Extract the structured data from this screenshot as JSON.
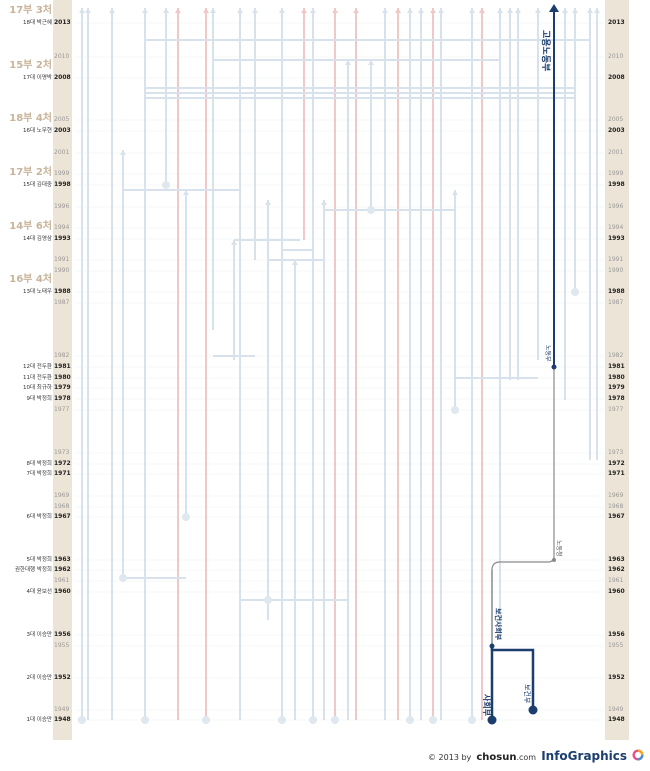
{
  "years_left": [
    {
      "y": "2013",
      "bold": true
    },
    {
      "y": "2010",
      "bold": false
    },
    {
      "y": "2008",
      "bold": true
    },
    {
      "y": "2005",
      "bold": false
    },
    {
      "y": "2003",
      "bold": true
    },
    {
      "y": "2001",
      "bold": false
    },
    {
      "y": "1999",
      "bold": false
    },
    {
      "y": "1998",
      "bold": true
    },
    {
      "y": "1996",
      "bold": false
    },
    {
      "y": "1994",
      "bold": false
    },
    {
      "y": "1993",
      "bold": true
    },
    {
      "y": "1991",
      "bold": false
    },
    {
      "y": "1990",
      "bold": false
    },
    {
      "y": "1988",
      "bold": true
    },
    {
      "y": "1987",
      "bold": false
    },
    {
      "y": "1982",
      "bold": false
    },
    {
      "y": "1981",
      "bold": true
    },
    {
      "y": "1980",
      "bold": true
    },
    {
      "y": "1979",
      "bold": true
    },
    {
      "y": "1978",
      "bold": true
    },
    {
      "y": "1977",
      "bold": false
    },
    {
      "y": "1973",
      "bold": false
    },
    {
      "y": "1972",
      "bold": true
    },
    {
      "y": "1971",
      "bold": true
    },
    {
      "y": "1969",
      "bold": false
    },
    {
      "y": "1968",
      "bold": false
    },
    {
      "y": "1967",
      "bold": true
    },
    {
      "y": "1963",
      "bold": true
    },
    {
      "y": "1962",
      "bold": true
    },
    {
      "y": "1961",
      "bold": false
    },
    {
      "y": "1960",
      "bold": true
    },
    {
      "y": "1956",
      "bold": true
    },
    {
      "y": "1955",
      "bold": false
    },
    {
      "y": "1952",
      "bold": true
    },
    {
      "y": "1949",
      "bold": false
    },
    {
      "y": "1948",
      "bold": true
    }
  ],
  "presidents": [
    {
      "year": "2013",
      "label": "18대 박근혜"
    },
    {
      "year": "2008",
      "label": "17대 이명박"
    },
    {
      "year": "2003",
      "label": "16대 노무현"
    },
    {
      "year": "1998",
      "label": "15대 김대중"
    },
    {
      "year": "1993",
      "label": "14대 김영삼"
    },
    {
      "year": "1988",
      "label": "13대 노태우"
    },
    {
      "year": "1981",
      "label": "12대 전두환"
    },
    {
      "year": "1980",
      "label": "11대 전두환"
    },
    {
      "year": "1979",
      "label": "10대 최규하"
    },
    {
      "year": "1978",
      "label": "9대 박정희"
    },
    {
      "year": "1972",
      "label": "8대 박정희"
    },
    {
      "year": "1971",
      "label": "7대 박정희"
    },
    {
      "year": "1967",
      "label": "6대 박정희"
    },
    {
      "year": "1963",
      "label": "5대 박정희"
    },
    {
      "year": "1962",
      "label": "권한대행 박정희"
    },
    {
      "year": "1960",
      "label": "4대 윤보선"
    },
    {
      "year": "1956",
      "label": "3대 이승만"
    },
    {
      "year": "1952",
      "label": "2대 이승만"
    },
    {
      "year": "1948",
      "label": "1대 이승만"
    }
  ],
  "periods": [
    {
      "year": "2013",
      "label": "17부 3처"
    },
    {
      "year": "2008",
      "label": "15부 2처"
    },
    {
      "year": "2003",
      "label": "18부 4처"
    },
    {
      "year": "1998",
      "label": "17부 2처"
    },
    {
      "year": "1993",
      "label": "14부 6처"
    },
    {
      "year": "1988",
      "label": "16부 4처"
    }
  ],
  "highlight_labels": {
    "ministry_social": "사회부",
    "ministry_health": "보건부",
    "ministry_health_social": "보건사회부",
    "labor_office": "노동청",
    "labor_ministry": "노동부",
    "employment_labor_ministry": "고용노동부"
  },
  "colors": {
    "dark": "#1b3e6e",
    "gray_line": "#8a8a8a",
    "faint_line": "#d8e2ec",
    "faint_red": "#f1c8c8",
    "sidebar": "#ece4d6"
  },
  "footer": {
    "copyright": "© 2013 by",
    "brand": "chosun",
    "domain": ".com",
    "infographics": "InfoGraphics"
  }
}
